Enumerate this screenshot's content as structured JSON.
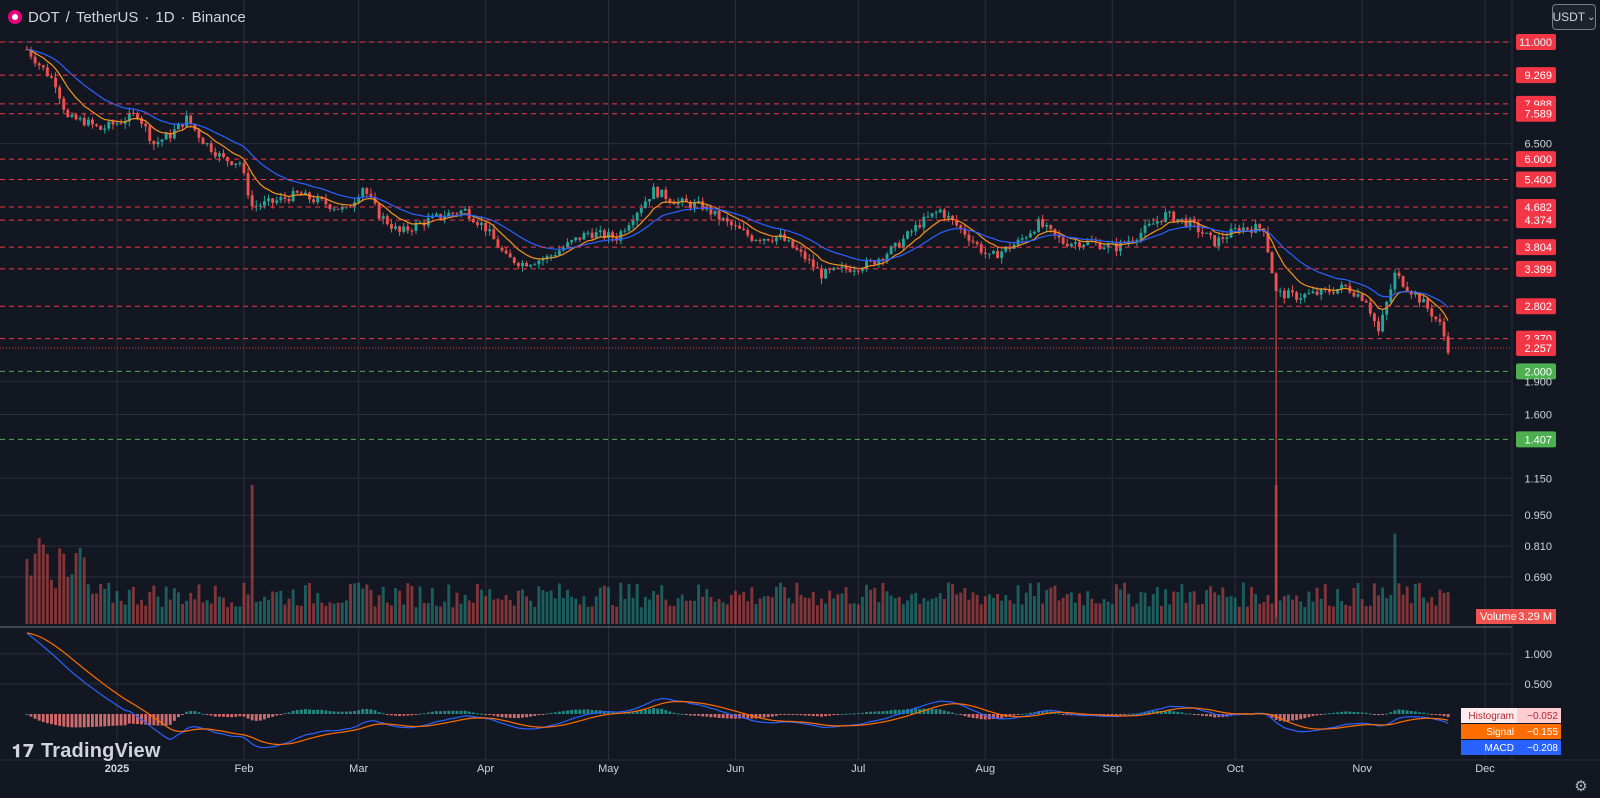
{
  "header": {
    "symbol": "DOT",
    "quote": "TetherUS",
    "interval": "1D",
    "exchange": "Binance",
    "separator_slash": "/",
    "separator_dot": "·"
  },
  "currency_button": "USDT",
  "currency_chevron": "⌄",
  "brand": "TradingView",
  "colors": {
    "background": "#131722",
    "grid": "#2a2e39",
    "up": "#26a69a",
    "down": "#ef5350",
    "ema_fast": "#f7931a",
    "ema_slow": "#2962ff",
    "resistance": "#f23645",
    "support": "#4caf50"
  },
  "chart_data": {
    "type": "candlestick",
    "symbol": "DOT / TetherUS",
    "interval": "1D",
    "exchange": "Binance",
    "scale": "log",
    "price_axis": {
      "ticks": [
        "11.000",
        "6.500",
        "1.900",
        "1.600",
        "1.150",
        "0.950",
        "0.810",
        "0.690"
      ],
      "range": [
        0.55,
        12.0
      ]
    },
    "x_axis": {
      "labels": [
        "2025",
        "Feb",
        "Mar",
        "Apr",
        "May",
        "Jun",
        "Jul",
        "Aug",
        "Sep",
        "Oct",
        "Nov",
        "Dec"
      ]
    },
    "levels": [
      {
        "value": "11.000",
        "style": "resistance"
      },
      {
        "value": "9.269",
        "style": "resistance"
      },
      {
        "value": "7.988",
        "style": "resistance"
      },
      {
        "value": "7.589",
        "style": "resistance"
      },
      {
        "value": "6.000",
        "style": "resistance"
      },
      {
        "value": "5.400",
        "style": "resistance"
      },
      {
        "value": "4.682",
        "style": "resistance"
      },
      {
        "value": "4.374",
        "style": "resistance"
      },
      {
        "value": "3.804",
        "style": "resistance"
      },
      {
        "value": "3.399",
        "style": "resistance"
      },
      {
        "value": "2.802",
        "style": "resistance"
      },
      {
        "value": "2.370",
        "style": "resistance"
      },
      {
        "value": "2.257",
        "style": "last-price"
      },
      {
        "value": "2.000",
        "style": "support"
      },
      {
        "value": "1.407",
        "style": "support"
      }
    ],
    "price_path": [
      [
        "2024-12-10",
        10.6
      ],
      [
        "2024-12-13",
        9.8
      ],
      [
        "2024-12-17",
        8.9
      ],
      [
        "2024-12-20",
        7.4
      ],
      [
        "2024-12-24",
        7.3
      ],
      [
        "2024-12-28",
        7.0
      ],
      [
        "2025-01-02",
        7.3
      ],
      [
        "2025-01-06",
        7.6
      ],
      [
        "2025-01-10",
        6.5
      ],
      [
        "2025-01-14",
        6.8
      ],
      [
        "2025-01-18",
        7.4
      ],
      [
        "2025-01-22",
        6.6
      ],
      [
        "2025-01-27",
        6.0
      ],
      [
        "2025-01-31",
        5.9
      ],
      [
        "2025-02-03",
        4.7
      ],
      [
        "2025-02-08",
        4.8
      ],
      [
        "2025-02-14",
        5.0
      ],
      [
        "2025-02-20",
        4.8
      ],
      [
        "2025-02-26",
        4.6
      ],
      [
        "2025-03-02",
        5.2
      ],
      [
        "2025-03-06",
        4.5
      ],
      [
        "2025-03-11",
        4.1
      ],
      [
        "2025-03-16",
        4.3
      ],
      [
        "2025-03-22",
        4.5
      ],
      [
        "2025-03-27",
        4.6
      ],
      [
        "2025-04-01",
        4.2
      ],
      [
        "2025-04-06",
        3.6
      ],
      [
        "2025-04-10",
        3.5
      ],
      [
        "2025-04-16",
        3.6
      ],
      [
        "2025-04-22",
        3.9
      ],
      [
        "2025-04-26",
        4.1
      ],
      [
        "2025-05-03",
        4.0
      ],
      [
        "2025-05-08",
        4.6
      ],
      [
        "2025-05-12",
        5.1
      ],
      [
        "2025-05-18",
        4.8
      ],
      [
        "2025-05-24",
        4.7
      ],
      [
        "2025-05-30",
        4.3
      ],
      [
        "2025-06-05",
        4.0
      ],
      [
        "2025-06-12",
        4.0
      ],
      [
        "2025-06-18",
        3.6
      ],
      [
        "2025-06-22",
        3.3
      ],
      [
        "2025-06-28",
        3.4
      ],
      [
        "2025-07-04",
        3.5
      ],
      [
        "2025-07-10",
        3.8
      ],
      [
        "2025-07-16",
        4.3
      ],
      [
        "2025-07-21",
        4.6
      ],
      [
        "2025-07-27",
        4.1
      ],
      [
        "2025-08-02",
        3.6
      ],
      [
        "2025-08-09",
        3.9
      ],
      [
        "2025-08-14",
        4.3
      ],
      [
        "2025-08-20",
        3.9
      ],
      [
        "2025-08-26",
        3.9
      ],
      [
        "2025-09-02",
        3.8
      ],
      [
        "2025-09-08",
        4.1
      ],
      [
        "2025-09-14",
        4.5
      ],
      [
        "2025-09-20",
        4.3
      ],
      [
        "2025-09-26",
        3.9
      ],
      [
        "2025-10-02",
        4.2
      ],
      [
        "2025-10-08",
        4.2
      ],
      [
        "2025-10-11",
        3.0
      ],
      [
        "2025-10-16",
        2.95
      ],
      [
        "2025-10-22",
        3.0
      ],
      [
        "2025-10-28",
        3.1
      ],
      [
        "2025-11-02",
        2.9
      ],
      [
        "2025-11-05",
        2.45
      ],
      [
        "2025-11-09",
        3.3
      ],
      [
        "2025-11-12",
        3.1
      ],
      [
        "2025-11-16",
        2.85
      ],
      [
        "2025-11-20",
        2.55
      ],
      [
        "2025-11-22",
        2.257
      ]
    ],
    "volume": {
      "label": "Volume",
      "last": "3.29 M",
      "spikes": [
        [
          "2025-02-03",
          1.0
        ],
        [
          "2025-10-11",
          1.0
        ],
        [
          "2025-11-09",
          0.65
        ]
      ]
    },
    "macd": {
      "ticks": [
        "1.000",
        "0.500"
      ],
      "histogram_label": "Histogram",
      "histogram_value": "−0.052",
      "signal_label": "Signal",
      "signal_value": "−0.155",
      "macd_label": "MACD",
      "macd_value": "−0.208"
    }
  }
}
